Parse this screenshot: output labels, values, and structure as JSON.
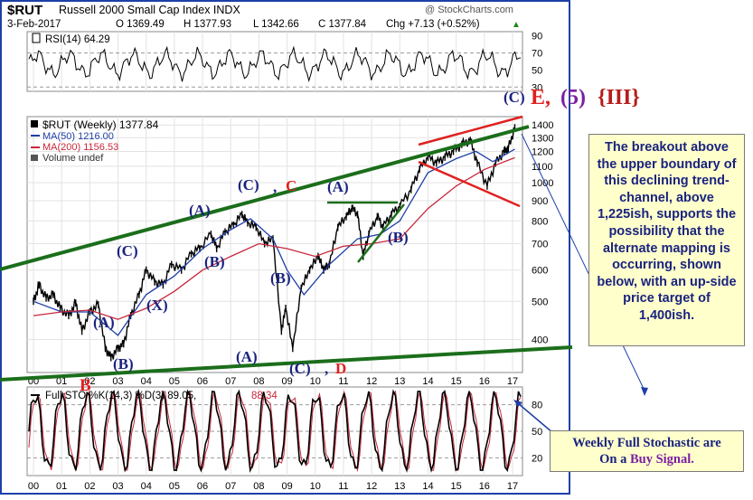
{
  "header": {
    "symbol": "$RUT",
    "name": "Russell 2000 Small Cap Index INDX",
    "watermark": "@ StockCharts.com",
    "date": "3-Feb-2017",
    "open": "O 1369.49",
    "high": "H 1377.93",
    "low": "L 1342.66",
    "close": "C 1377.84",
    "change": "Chg +7.13 (+0.52%)",
    "change_arrow": "▲"
  },
  "rsi": {
    "label": "RSI(14) 64.29",
    "ticks": [
      "90",
      "70",
      "50",
      "30"
    ],
    "levels": [
      70,
      30
    ]
  },
  "price_panel": {
    "legend_title": "$RUT (Weekly) 1377.84",
    "legend_ma50": "MA(50) 1216.00",
    "legend_ma200": "MA(200) 1156.53",
    "legend_volume": "Volume undef",
    "colors": {
      "price": "#000000",
      "ma50": "#1e3fa8",
      "ma200": "#c8283c"
    }
  },
  "stochastic": {
    "label_prefix": "Full STO %K(14,3) %D(3) 89.05,",
    "label_value": "88.34",
    "ticks": [
      "80",
      "50",
      "20"
    ]
  },
  "wave_labels": {
    "a1": "(A)",
    "b1": "(B)",
    "x": "(X)",
    "c1": "(C)",
    "a2": "(A)",
    "b2": "(B)",
    "c2": "(C)",
    "c2_sep": ",",
    "c2_letter": "C",
    "b3": "(B)",
    "a3": "(A)",
    "c3": "(C)",
    "c3_sep": ",",
    "c3_letter": "D",
    "a4": "(A)",
    "b4": "(B)",
    "b_letter": "B",
    "top_c": "(C)",
    "top_e": "E,",
    "top_5": "(5)",
    "top_iii": "{III}"
  },
  "callouts": {
    "main": "The breakout above the upper boundary of this declining trend-channel, above 1,225ish, supports the possibility that the alternate mapping is occurring, shown below, with an up-side price target of 1,400ish.",
    "stoch_line1": "Weekly Full Stochastic are",
    "stoch_pre": "On a",
    "stoch_signal": "Buy Signal."
  },
  "chart_data": {
    "type": "line",
    "title": "$RUT Russell 2000 Small Cap Index INDX",
    "x_axis_labels": [
      "00",
      "01",
      "02",
      "03",
      "04",
      "05",
      "06",
      "07",
      "08",
      "09",
      "10",
      "11",
      "12",
      "13",
      "14",
      "15",
      "16",
      "17"
    ],
    "y_scale": "log",
    "y_ticks": [
      400,
      500,
      600,
      700,
      800,
      900,
      1000,
      1100,
      1200,
      1300,
      1400
    ],
    "ylim": [
      330,
      1470
    ],
    "grid": true,
    "series": [
      {
        "name": "$RUT (Weekly)",
        "x": [
          2000.0,
          2000.2,
          2000.45,
          2000.7,
          2000.95,
          2001.25,
          2001.5,
          2001.72,
          2002.0,
          2002.3,
          2002.55,
          2002.75,
          2003.0,
          2003.2,
          2003.45,
          2003.75,
          2004.0,
          2004.3,
          2004.6,
          2004.9,
          2005.25,
          2005.6,
          2005.9,
          2006.3,
          2006.5,
          2006.8,
          2007.1,
          2007.4,
          2007.6,
          2007.9,
          2008.2,
          2008.5,
          2008.8,
          2008.95,
          2009.2,
          2009.5,
          2009.8,
          2010.1,
          2010.3,
          2010.5,
          2010.8,
          2011.1,
          2011.3,
          2011.5,
          2011.7,
          2011.9,
          2012.2,
          2012.4,
          2012.7,
          2013.0,
          2013.4,
          2013.7,
          2014.0,
          2014.3,
          2014.6,
          2014.9,
          2015.2,
          2015.5,
          2015.75,
          2016.1,
          2016.4,
          2016.7,
          2016.85,
          2017.08
        ],
        "values": [
          500,
          550,
          510,
          520,
          480,
          460,
          495,
          420,
          470,
          490,
          380,
          360,
          380,
          390,
          460,
          520,
          600,
          560,
          550,
          620,
          600,
          660,
          680,
          740,
          680,
          750,
          780,
          830,
          790,
          770,
          700,
          720,
          420,
          480,
          380,
          540,
          600,
          650,
          600,
          620,
          770,
          820,
          860,
          830,
          650,
          740,
          820,
          770,
          830,
          870,
          960,
          1080,
          1160,
          1120,
          1160,
          1200,
          1250,
          1280,
          1120,
          980,
          1120,
          1200,
          1220,
          1377.84
        ]
      },
      {
        "name": "MA(50)",
        "x": [
          2000.0,
          2001.0,
          2002.0,
          2003.0,
          2004.0,
          2005.0,
          2006.0,
          2007.0,
          2007.7,
          2008.5,
          2009.0,
          2009.6,
          2010.5,
          2011.5,
          2012.3,
          2013.0,
          2014.0,
          2015.0,
          2015.7,
          2016.3,
          2017.08
        ],
        "values": [
          500,
          470,
          470,
          410,
          520,
          580,
          680,
          760,
          810,
          720,
          600,
          520,
          620,
          720,
          740,
          800,
          1060,
          1150,
          1200,
          1130,
          1216
        ]
      },
      {
        "name": "MA(200)",
        "x": [
          2000.0,
          2001.0,
          2002.0,
          2003.0,
          2004.0,
          2005.0,
          2006.0,
          2007.0,
          2008.0,
          2009.0,
          2010.0,
          2011.0,
          2012.0,
          2013.0,
          2014.0,
          2015.0,
          2016.0,
          2017.08
        ],
        "values": [
          460,
          470,
          475,
          450,
          480,
          530,
          600,
          650,
          700,
          680,
          650,
          690,
          700,
          720,
          860,
          980,
          1080,
          1156.53
        ]
      }
    ],
    "rsi": {
      "label": "RSI(14)",
      "last": 64.29,
      "ylim": [
        25,
        95
      ]
    },
    "stochastic": {
      "label": "Full STO %K(14,3) %D(3)",
      "k": 89.05,
      "d": 88.34,
      "ylim": [
        0,
        100
      ]
    }
  }
}
